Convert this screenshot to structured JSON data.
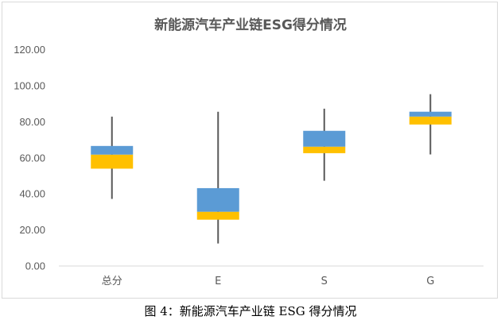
{
  "chart_data": {
    "type": "box",
    "title": "新能源汽车产业链ESG得分情况",
    "caption": "图 4：新能源汽车产业链 ESG 得分情况",
    "xlabel": "",
    "ylabel": "",
    "ylim": [
      0,
      120
    ],
    "yticks": [
      "0.00",
      "20.00",
      "40.00",
      "60.00",
      "80.00",
      "100.00",
      "120.00"
    ],
    "ytick_values": [
      0,
      20,
      40,
      60,
      80,
      100,
      120
    ],
    "grid": false,
    "legend": null,
    "categories": [
      "总分",
      "E",
      "S",
      "G"
    ],
    "series": [
      {
        "name": "min",
        "values": [
          37.2,
          12.5,
          47.3,
          61.9
        ]
      },
      {
        "name": "q1",
        "values": [
          54.0,
          25.7,
          62.6,
          78.5
        ]
      },
      {
        "name": "median",
        "values": [
          61.8,
          30.1,
          66.2,
          82.9
        ]
      },
      {
        "name": "q3",
        "values": [
          66.6,
          43.2,
          75.0,
          85.6
        ]
      },
      {
        "name": "max",
        "values": [
          82.9,
          85.6,
          87.3,
          95.3
        ]
      }
    ],
    "colors": {
      "lower_box": "#FFC000",
      "upper_box": "#5B9BD5",
      "whisker": "#595959",
      "axis": "#d9d9d9",
      "text": "#595959"
    }
  }
}
